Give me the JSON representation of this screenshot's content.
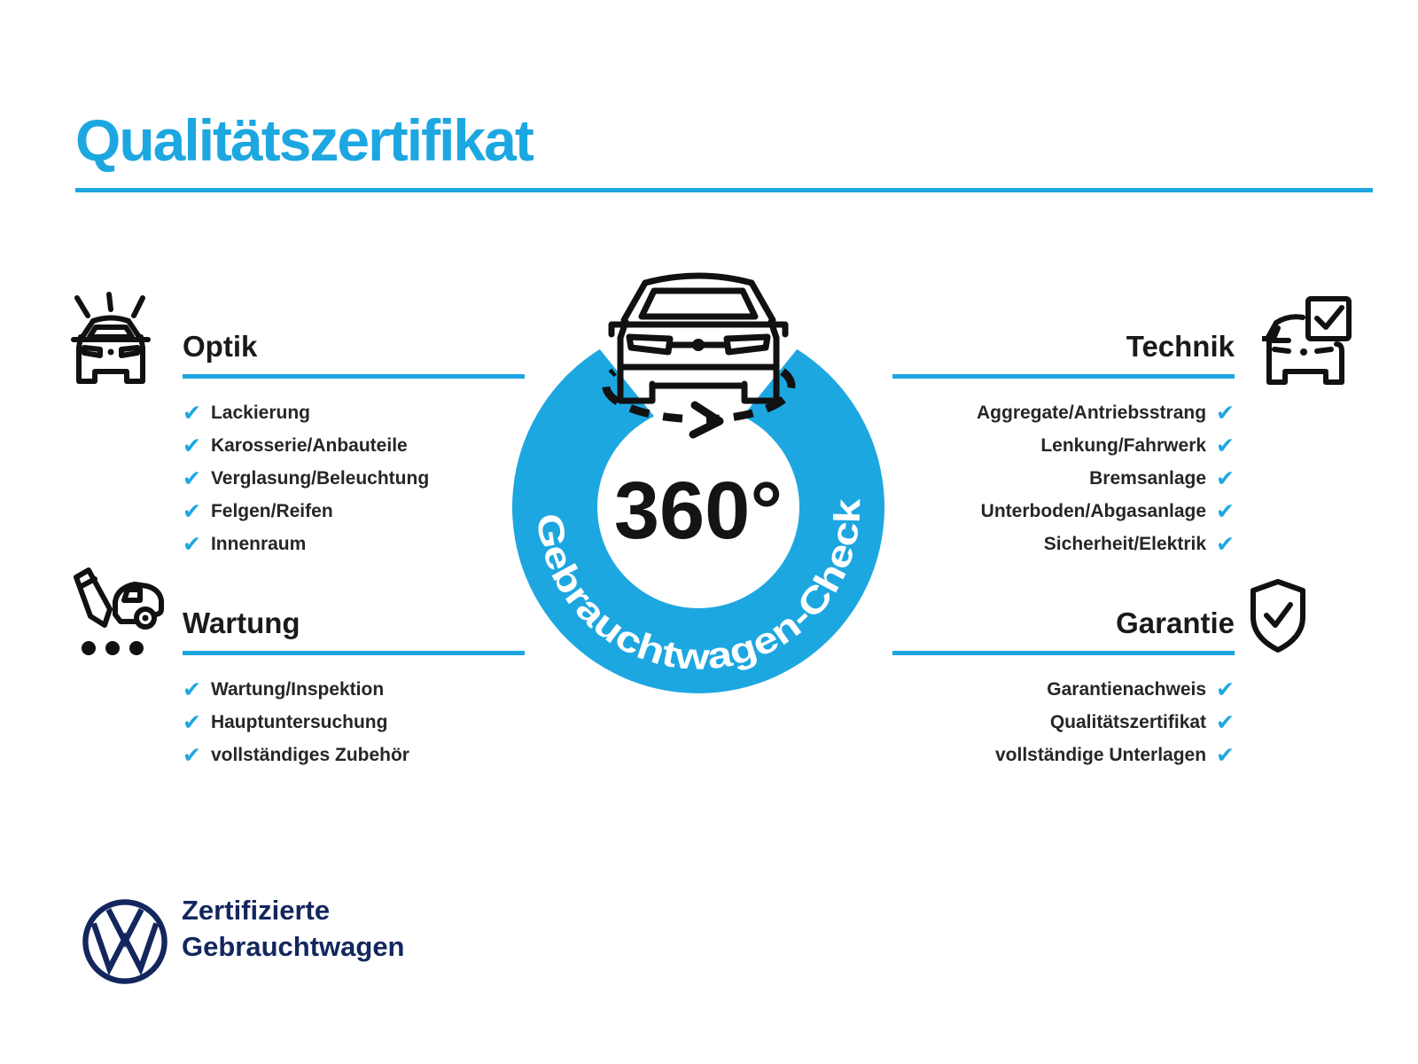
{
  "colors": {
    "accent": "#1da7e1",
    "navy": "#13275e",
    "ink": "#1a1a1a"
  },
  "title": "Qualitätszertifikat",
  "badge": {
    "degrees": "360°",
    "ring_label": "Gebrauchtwagen-Check"
  },
  "check_glyph": "✔",
  "sections": [
    {
      "id": "optik",
      "title": "Optik",
      "align": "left",
      "icon": "car-shine-icon",
      "items": [
        "Lackierung",
        "Karosserie/Anbauteile",
        "Verglasung/Beleuchtung",
        "Felgen/Reifen",
        "Innenraum"
      ]
    },
    {
      "id": "wartung",
      "title": "Wartung",
      "align": "left",
      "icon": "service-pencil-car-icon",
      "items": [
        "Wartung/Inspektion",
        "Hauptuntersuchung",
        "vollständiges Zubehör"
      ]
    },
    {
      "id": "technik",
      "title": "Technik",
      "align": "right",
      "icon": "car-checkbox-icon",
      "items": [
        "Aggregate/Antriebsstrang",
        "Lenkung/Fahrwerk",
        "Bremsanlage",
        "Unterboden/Abgasanlage",
        "Sicherheit/Elektrik"
      ]
    },
    {
      "id": "garantie",
      "title": "Garantie",
      "align": "right",
      "icon": "shield-check-icon",
      "items": [
        "Garantienachweis",
        "Qualitätszertifikat",
        "vollständige Unterlagen"
      ]
    }
  ],
  "footer": {
    "brand_line1": "Zertifizierte",
    "brand_line2": "Gebrauchtwagen"
  }
}
